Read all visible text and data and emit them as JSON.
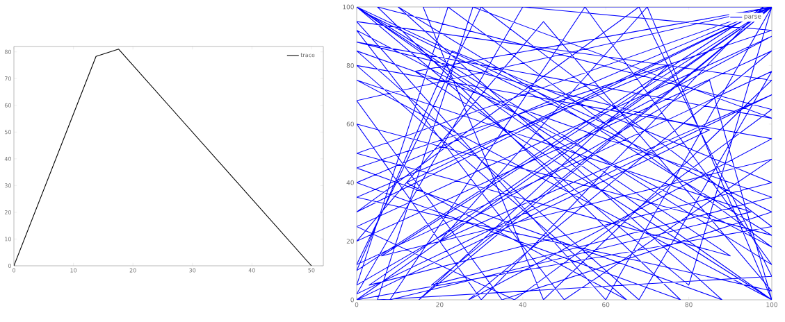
{
  "chart_data": [
    {
      "type": "line",
      "x": [
        0,
        13.8,
        17.6,
        50
      ],
      "series": [
        {
          "name": "trace",
          "color": "#000000",
          "values": [
            0,
            78.3,
            81,
            0
          ]
        }
      ],
      "xlim": [
        0,
        52
      ],
      "ylim": [
        0,
        82
      ],
      "xticks": [
        0,
        10,
        20,
        30,
        40,
        50
      ],
      "yticks": [
        0,
        10,
        20,
        30,
        40,
        50,
        60,
        70,
        80
      ],
      "legend": "top right"
    },
    {
      "type": "line",
      "x": [
        0,
        100,
        14,
        100,
        0,
        68,
        100,
        5,
        28,
        100,
        0,
        85,
        0,
        100,
        16,
        45,
        100,
        0,
        60,
        100,
        3,
        100,
        23,
        0,
        98,
        30,
        0,
        100,
        10,
        88,
        0,
        100,
        40,
        0,
        100,
        20,
        70,
        100,
        0,
        95,
        8,
        55,
        100,
        0,
        80,
        100,
        12,
        65,
        0,
        100,
        27,
        100,
        0,
        45,
        100,
        0,
        75,
        15,
        100,
        0,
        90,
        2,
        100,
        35,
        0,
        100,
        6,
        100,
        50,
        0,
        100,
        22,
        0,
        85,
        100,
        0,
        60,
        100,
        0,
        38,
        100,
        5,
        78,
        0,
        100,
        18,
        100,
        0,
        68,
        100,
        0,
        30,
        100,
        0,
        100
      ],
      "series": [
        {
          "name": "parse",
          "color": "#0000ff",
          "values": [
            100,
            0,
            78,
            100,
            30,
            100,
            8,
            0,
            100,
            62,
            88,
            58,
            0,
            100,
            100,
            0,
            75,
            95,
            0,
            100,
            5,
            40,
            85,
            10,
            100,
            0,
            60,
            22,
            100,
            0,
            45,
            92,
            100,
            2,
            70,
            20,
            100,
            0,
            75,
            30,
            0,
            100,
            12,
            100,
            5,
            100,
            40,
            0,
            80,
            55,
            0,
            85,
            20,
            95,
            3,
            35,
            80,
            0,
            100,
            50,
            15,
            98,
            30,
            0,
            68,
            100,
            15,
            48,
            0,
            92,
            18,
            100,
            5,
            75,
            0,
            100,
            60,
            90,
            25,
            0,
            65,
            100,
            0,
            40,
            100,
            5,
            35,
            85,
            0,
            78,
            12,
            100,
            25,
            0,
            100
          ]
        }
      ],
      "xlim": [
        0,
        100
      ],
      "ylim": [
        0,
        100
      ],
      "xticks": [
        0,
        20,
        40,
        60,
        80,
        100
      ],
      "yticks": [
        0,
        20,
        40,
        60,
        80,
        100
      ],
      "legend": "top right"
    }
  ]
}
